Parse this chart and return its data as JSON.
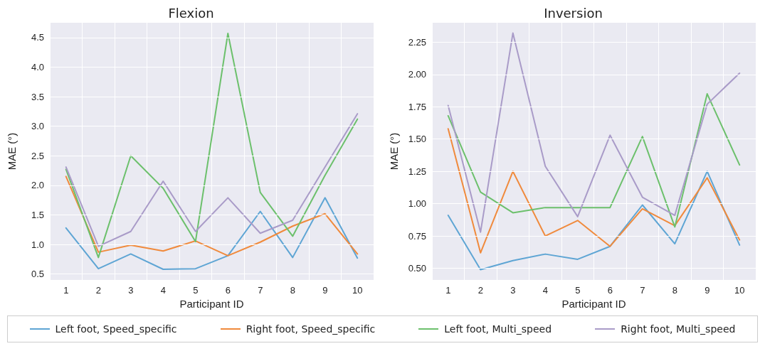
{
  "chart_data": [
    {
      "type": "line",
      "title": "Flexion",
      "xlabel": "Participant ID",
      "ylabel": "MAE (°)",
      "categories": [
        "1",
        "2",
        "3",
        "4",
        "5",
        "6",
        "7",
        "8",
        "9",
        "10"
      ],
      "ylim": [
        0.4,
        4.75
      ],
      "yticks": [
        0.5,
        {
          "value": 1,
          "label": "1.0"
        },
        1.5,
        {
          "value": 2,
          "label": "2.0"
        },
        2.5,
        {
          "value": 3,
          "label": "3.0"
        },
        3.5,
        {
          "value": 4,
          "label": "4.0"
        },
        4.5
      ],
      "grid": true,
      "legend": "bottom",
      "marker": "none",
      "line_style": "solid",
      "series": [
        {
          "name": "Left foot, Speed_specific",
          "color": "#5ea5d4",
          "values": [
            1.28,
            0.59,
            0.84,
            0.58,
            0.59,
            0.81,
            1.56,
            0.78,
            1.79,
            0.77
          ]
        },
        {
          "name": "Right foot, Speed_specific",
          "color": "#f08a3c",
          "values": [
            2.15,
            0.87,
            0.99,
            0.89,
            1.06,
            0.81,
            1.04,
            1.31,
            1.52,
            0.84
          ]
        },
        {
          "name": "Left foot, Multi_speed",
          "color": "#6cc06c",
          "values": [
            2.27,
            0.78,
            2.5,
            1.95,
            1.05,
            4.57,
            1.88,
            1.14,
            2.17,
            3.12
          ]
        },
        {
          "name": "Right foot, Multi_speed",
          "color": "#a99bc8",
          "values": [
            2.31,
            0.97,
            1.22,
            2.07,
            1.22,
            1.79,
            1.19,
            1.41,
            2.31,
            3.21
          ]
        }
      ]
    },
    {
      "type": "line",
      "title": "Inversion",
      "xlabel": "Participant ID",
      "ylabel": "MAE (°)",
      "categories": [
        "1",
        "2",
        "3",
        "4",
        "5",
        "6",
        "7",
        "8",
        "9",
        "10"
      ],
      "ylim": [
        0.41,
        2.4
      ],
      "yticks": [
        {
          "value": 0.5,
          "label": "0.50"
        },
        0.75,
        {
          "value": 1,
          "label": "1.00"
        },
        1.25,
        {
          "value": 1.5,
          "label": "1.50"
        },
        1.75,
        {
          "value": 2,
          "label": "2.00"
        },
        2.25
      ],
      "grid": true,
      "legend": "bottom",
      "marker": "none",
      "line_style": "solid",
      "series": [
        {
          "name": "Left foot, Speed_specific",
          "color": "#5ea5d4",
          "values": [
            0.91,
            0.49,
            0.56,
            0.61,
            0.57,
            0.67,
            0.99,
            0.69,
            1.25,
            0.68
          ]
        },
        {
          "name": "Right foot, Speed_specific",
          "color": "#f08a3c",
          "values": [
            1.58,
            0.62,
            1.25,
            0.75,
            0.87,
            0.67,
            0.96,
            0.83,
            1.2,
            0.72
          ]
        },
        {
          "name": "Left foot, Multi_speed",
          "color": "#6cc06c",
          "values": [
            1.68,
            1.09,
            0.93,
            0.97,
            0.97,
            0.97,
            1.52,
            0.82,
            1.85,
            1.3
          ]
        },
        {
          "name": "Right foot, Multi_speed",
          "color": "#a99bc8",
          "values": [
            1.76,
            0.78,
            2.32,
            1.29,
            0.9,
            1.53,
            1.05,
            0.91,
            1.77,
            2.01
          ]
        }
      ]
    }
  ]
}
